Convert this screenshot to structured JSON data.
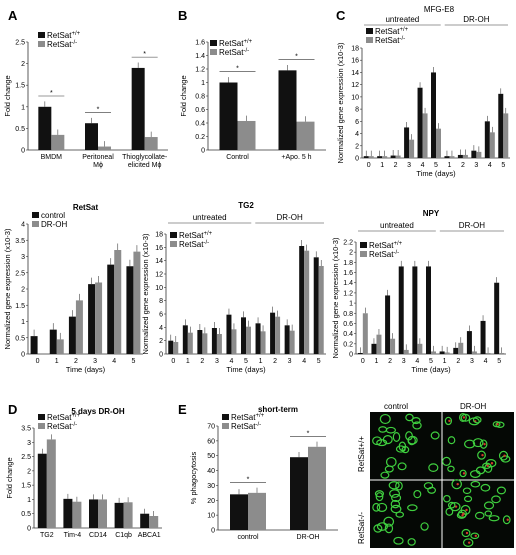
{
  "panels": {
    "A": {
      "letter": "A"
    },
    "B": {
      "letter": "B"
    },
    "C": {
      "letter": "C"
    },
    "D": {
      "letter": "D"
    },
    "E": {
      "letter": "E"
    }
  },
  "micrograph": {
    "col_headers": [
      "control",
      "DR-OH"
    ],
    "row_headers": [
      "RetSat+/+",
      "RetSat-/-"
    ]
  },
  "colors": {
    "wt": "#111111",
    "ko": "#8c8c8c",
    "cell_green": "#3fcf3f",
    "cell_red": "#d23a2a"
  },
  "chart_data": [
    {
      "id": "A",
      "type": "bar",
      "ylabel": "Fold change",
      "ylim": [
        0,
        2.5
      ],
      "yticks": [
        "0",
        "0.5",
        "1",
        "1.5",
        "2",
        "2.5"
      ],
      "categories": [
        "BMDM",
        "Peritoneal Mϕ",
        "Thioglycollate-elicited Mϕ"
      ],
      "series": [
        {
          "name": "RetSat+/+",
          "values": [
            1.0,
            0.62,
            1.9
          ]
        },
        {
          "name": "RetSat-/-",
          "values": [
            0.35,
            0.08,
            0.3
          ]
        }
      ],
      "annotations": [
        "*",
        "*",
        "*"
      ]
    },
    {
      "id": "B",
      "type": "bar",
      "ylabel": "Fold change",
      "ylim": [
        0,
        1.6
      ],
      "yticks": [
        "0",
        "0.2",
        "0.4",
        "0.6",
        "0.8",
        "1",
        "1.2",
        "1.4",
        "1.6"
      ],
      "categories": [
        "Control",
        "+Apo. 5 h"
      ],
      "series": [
        {
          "name": "RetSat+/+",
          "values": [
            1.0,
            1.18
          ]
        },
        {
          "name": "RetSat-/-",
          "values": [
            0.43,
            0.42
          ]
        }
      ],
      "annotations": [
        "*",
        "*"
      ]
    },
    {
      "id": "C",
      "type": "bar",
      "title": "MFG-E8",
      "ylabel": "Normalized gene expression (x10-3)",
      "xlabel": "Time (days)",
      "group_labels": [
        "untreated",
        "DR-OH"
      ],
      "ylim": [
        0,
        18
      ],
      "yticks": [
        "0",
        "2",
        "4",
        "6",
        "8",
        "10",
        "12",
        "14",
        "16",
        "18"
      ],
      "categories": [
        "0",
        "1",
        "2",
        "3",
        "4",
        "5",
        "1",
        "2",
        "3",
        "4",
        "5"
      ],
      "series": [
        {
          "name": "RetSat+/+",
          "values": [
            0.3,
            0.3,
            0.4,
            5.0,
            11.5,
            14.0,
            0.3,
            0.5,
            1.2,
            6.0,
            10.5
          ]
        },
        {
          "name": "RetSat-/-",
          "values": [
            0.3,
            0.3,
            0.4,
            3.0,
            7.3,
            4.8,
            0.3,
            0.5,
            1.0,
            4.2,
            7.3
          ]
        }
      ]
    },
    {
      "id": "RetSat",
      "type": "bar",
      "title": "RetSat",
      "ylabel": "Normalized gene expression (x10-3)",
      "xlabel": "Time (days)",
      "ylim": [
        0,
        4
      ],
      "yticks": [
        "0",
        "0.5",
        "1",
        "1.5",
        "2",
        "2.5",
        "3",
        "3.5",
        "4"
      ],
      "categories": [
        "0",
        "1",
        "2",
        "3",
        "4",
        "5"
      ],
      "series": [
        {
          "name": "control",
          "values": [
            0.55,
            0.75,
            1.15,
            2.15,
            2.75,
            2.7
          ]
        },
        {
          "name": "DR-OH",
          "values": [
            null,
            0.45,
            1.65,
            2.2,
            3.2,
            3.15
          ]
        }
      ]
    },
    {
      "id": "TG2",
      "type": "bar",
      "title": "TG2",
      "ylabel": "Normalized gene expression (x10-3)",
      "xlabel": "Time (days)",
      "group_labels": [
        "untreated",
        "DR-OH"
      ],
      "ylim": [
        0,
        18
      ],
      "yticks": [
        "0",
        "2",
        "4",
        "6",
        "8",
        "10",
        "12",
        "14",
        "16",
        "18"
      ],
      "categories": [
        "0",
        "1",
        "2",
        "3",
        "4",
        "5",
        "1",
        "2",
        "3",
        "4",
        "5"
      ],
      "series": [
        {
          "name": "RetSat+/+",
          "values": [
            2.0,
            4.3,
            3.6,
            3.9,
            5.9,
            5.5,
            4.6,
            6.2,
            4.3,
            16.2,
            14.5
          ]
        },
        {
          "name": "RetSat-/-",
          "values": [
            1.8,
            3.2,
            3.1,
            3.0,
            3.7,
            4.1,
            3.4,
            5.6,
            3.5,
            15.5,
            13.2
          ]
        }
      ]
    },
    {
      "id": "NPY",
      "type": "bar",
      "title": "NPY",
      "ylabel": "Normalized gene expression (x10-3)",
      "xlabel": "Time (days)",
      "group_labels": [
        "untreated",
        "DR-OH"
      ],
      "ylim": [
        0,
        2.2
      ],
      "yticks": [
        "0",
        "0.2",
        "0.4",
        "0.6",
        "0.8",
        "1",
        "1.2",
        "1.4",
        "1.6",
        "1.8",
        "2",
        "2.2"
      ],
      "categories": [
        "0",
        "1",
        "2",
        "3",
        "4",
        "5",
        "1",
        "2",
        "3",
        "4",
        "5"
      ],
      "series": [
        {
          "name": "RetSat+/+",
          "values": [
            0.02,
            0.2,
            1.15,
            1.72,
            1.72,
            1.72,
            0.05,
            0.12,
            0.45,
            0.65,
            1.4
          ]
        },
        {
          "name": "RetSat-/-",
          "values": [
            0.8,
            0.38,
            0.3,
            0.08,
            0.2,
            0.05,
            0.03,
            0.22,
            0.05,
            0.02,
            0.02
          ]
        }
      ]
    },
    {
      "id": "D",
      "type": "bar",
      "title": "5 days DR-OH",
      "ylabel": "Fold change",
      "ylim": [
        0,
        3.5
      ],
      "yticks": [
        "0",
        "0.5",
        "1",
        "1.5",
        "2",
        "2.5",
        "3",
        "3.5"
      ],
      "categories": [
        "TG2",
        "Tim-4",
        "CD14",
        "C1qb",
        "ABCA1"
      ],
      "series": [
        {
          "name": "RetSat+/+",
          "values": [
            2.6,
            1.02,
            1.0,
            0.88,
            0.5
          ]
        },
        {
          "name": "RetSat-/-",
          "values": [
            3.1,
            0.92,
            1.0,
            0.9,
            0.42
          ]
        }
      ]
    },
    {
      "id": "E",
      "type": "bar",
      "title": "short-term",
      "ylabel": "% phagocytosis",
      "ylim": [
        0,
        70
      ],
      "yticks": [
        "0",
        "10",
        "20",
        "30",
        "40",
        "50",
        "60",
        "70"
      ],
      "categories": [
        "control",
        "DR-OH"
      ],
      "series": [
        {
          "name": "RetSat+/+",
          "values": [
            24,
            49
          ]
        },
        {
          "name": "RetSat-/-",
          "values": [
            25,
            56
          ]
        }
      ],
      "annotations": [
        "*",
        "*"
      ]
    }
  ]
}
